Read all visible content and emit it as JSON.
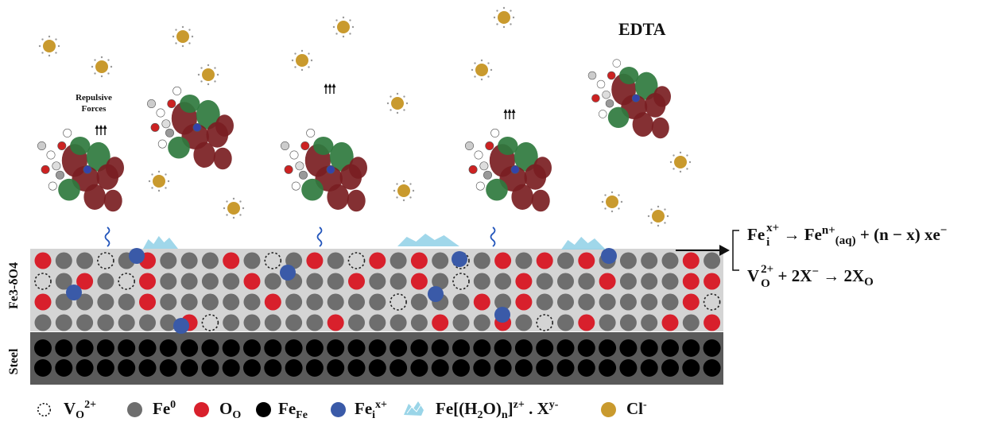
{
  "title": "EDTA",
  "repulsive_label": "Repulsive Forces",
  "layers": {
    "oxide": "Fe3-δO4",
    "steel": "Steel"
  },
  "equations": {
    "eq1": {
      "lhs": "Fe",
      "lhs_sup": "x+",
      "lhs_sub": "i",
      "arrow": "→",
      "rhs1": "Fe",
      "rhs1_sup": "n+",
      "rhs1_sub": "(aq)",
      "rhs2": "+ (n − x) xe",
      "rhs2_sup": "−"
    },
    "eq2": {
      "lhs": "V",
      "lhs_sup": "2+",
      "lhs_sub": "O",
      "rhs": "+ 2X",
      "rhs_sup": "−",
      "arrow": "→",
      "rhs2": "2X",
      "rhs2_sub": "O"
    }
  },
  "legend": {
    "vacancy": {
      "base": "V",
      "sub": "O",
      "sup": "2+"
    },
    "fe0": {
      "base": "Fe",
      "sup": "0"
    },
    "oo": {
      "base": "O",
      "sub": "O"
    },
    "fefe": {
      "base": "Fe",
      "sub": "Fe"
    },
    "fei": {
      "base": "Fe",
      "sub": "i",
      "sup": "x+"
    },
    "complex": {
      "text1": "Fe[(H",
      "sub1": "2",
      "text2": "O)",
      "sub2": "n",
      "text3": "]",
      "sup1": "z+",
      "text4": " . X",
      "sup2": "y-"
    },
    "cl": {
      "base": "Cl",
      "sup": "-"
    }
  },
  "colors": {
    "fe0": "#6e6e6e",
    "oxygen": "#d8202c",
    "fe_fe": "#000000",
    "fe_i": "#3a5aa8",
    "chloride": "#c99a2e",
    "complex": "#8fd0e6",
    "steel_bg": "#5a5a5a",
    "oxide_bg": "#d4d4d4",
    "edta_red": "#7a1e22",
    "edta_green": "#2f7a3e"
  }
}
